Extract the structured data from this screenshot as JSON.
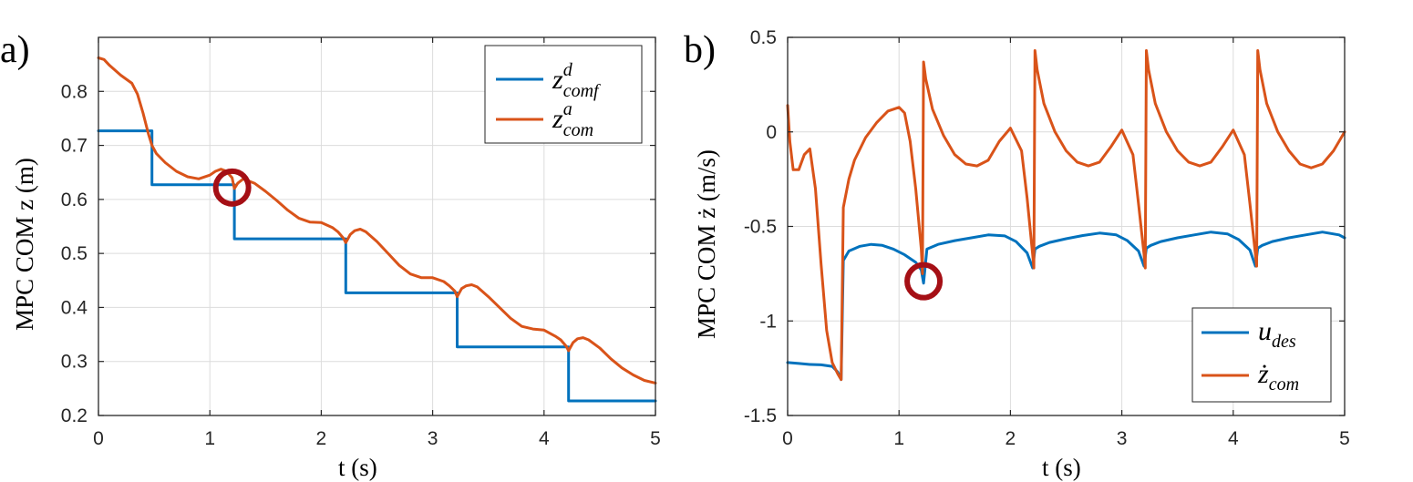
{
  "chart_data": [
    {
      "type": "line",
      "panel_label": "a)",
      "xlabel": "t (s)",
      "ylabel": "MPC COM z (m)",
      "xlim": [
        0,
        5
      ],
      "ylim": [
        0.2,
        0.9
      ],
      "xticks": [
        0,
        1,
        2,
        3,
        4,
        5
      ],
      "yticks": [
        0.2,
        0.3,
        0.4,
        0.5,
        0.6,
        0.7,
        0.8
      ],
      "xtick_labels": [
        "0",
        "1",
        "2",
        "3",
        "4",
        "5"
      ],
      "ytick_labels": [
        "0.2",
        "0.3",
        "0.4",
        "0.5",
        "0.6",
        "0.7",
        "0.8"
      ],
      "grid": true,
      "legend_position": "top-right",
      "series": [
        {
          "name": "z^d_comf",
          "legend": {
            "main": "z",
            "sup": "d",
            "sub": "comf"
          },
          "color": "#0072BD",
          "x": [
            0,
            0.48,
            0.48,
            1.22,
            1.22,
            2.22,
            2.22,
            3.22,
            3.22,
            4.22,
            4.22,
            5.0
          ],
          "y": [
            0.727,
            0.727,
            0.627,
            0.627,
            0.527,
            0.527,
            0.427,
            0.427,
            0.327,
            0.327,
            0.227,
            0.227
          ]
        },
        {
          "name": "z^a_com",
          "legend": {
            "main": "z",
            "sup": "a",
            "sub": "com"
          },
          "color": "#D95319",
          "x": [
            0,
            0.05,
            0.1,
            0.2,
            0.3,
            0.35,
            0.4,
            0.45,
            0.48,
            0.52,
            0.6,
            0.7,
            0.8,
            0.9,
            1.0,
            1.05,
            1.1,
            1.15,
            1.2,
            1.22,
            1.25,
            1.3,
            1.4,
            1.5,
            1.6,
            1.7,
            1.8,
            1.9,
            2.0,
            2.1,
            2.15,
            2.2,
            2.22,
            2.26,
            2.3,
            2.35,
            2.4,
            2.5,
            2.6,
            2.7,
            2.8,
            2.9,
            3.0,
            3.1,
            3.15,
            3.2,
            3.22,
            3.26,
            3.3,
            3.35,
            3.4,
            3.5,
            3.6,
            3.7,
            3.8,
            3.9,
            4.0,
            4.1,
            4.15,
            4.2,
            4.22,
            4.26,
            4.3,
            4.35,
            4.4,
            4.5,
            4.6,
            4.7,
            4.8,
            4.9,
            5.0
          ],
          "y": [
            0.862,
            0.859,
            0.848,
            0.83,
            0.815,
            0.795,
            0.76,
            0.72,
            0.7,
            0.685,
            0.668,
            0.652,
            0.642,
            0.638,
            0.645,
            0.652,
            0.656,
            0.652,
            0.64,
            0.62,
            0.63,
            0.638,
            0.63,
            0.615,
            0.598,
            0.58,
            0.565,
            0.558,
            0.557,
            0.548,
            0.54,
            0.528,
            0.52,
            0.535,
            0.542,
            0.545,
            0.54,
            0.522,
            0.5,
            0.478,
            0.462,
            0.455,
            0.455,
            0.448,
            0.44,
            0.43,
            0.42,
            0.435,
            0.44,
            0.442,
            0.438,
            0.42,
            0.4,
            0.38,
            0.365,
            0.36,
            0.358,
            0.347,
            0.34,
            0.328,
            0.32,
            0.335,
            0.342,
            0.344,
            0.34,
            0.325,
            0.305,
            0.288,
            0.275,
            0.265,
            0.26
          ]
        }
      ],
      "annotations": [
        {
          "type": "circle",
          "x": 1.2,
          "y": 0.622,
          "color": "#A50F15"
        }
      ]
    },
    {
      "type": "line",
      "panel_label": "b)",
      "xlabel": "t (s)",
      "ylabel": "MPC COM ż (m/s)",
      "xlim": [
        0,
        5
      ],
      "ylim": [
        -1.5,
        0.5
      ],
      "xticks": [
        0,
        1,
        2,
        3,
        4,
        5
      ],
      "yticks": [
        -1.5,
        -1,
        -0.5,
        0,
        0.5
      ],
      "xtick_labels": [
        "0",
        "1",
        "2",
        "3",
        "4",
        "5"
      ],
      "ytick_labels": [
        "-1.5",
        "-1",
        "-0.5",
        "0",
        "0.5"
      ],
      "grid": true,
      "legend_position": "bottom-right",
      "series": [
        {
          "name": "u_des",
          "legend": {
            "main": "u",
            "sup": "",
            "sub": "des"
          },
          "color": "#0072BD",
          "x": [
            0,
            0.1,
            0.2,
            0.3,
            0.4,
            0.45,
            0.48,
            0.5,
            0.55,
            0.65,
            0.75,
            0.85,
            0.95,
            1.05,
            1.15,
            1.2,
            1.22,
            1.25,
            1.35,
            1.5,
            1.65,
            1.8,
            1.95,
            2.05,
            2.15,
            2.2,
            2.22,
            2.26,
            2.35,
            2.5,
            2.65,
            2.8,
            2.95,
            3.05,
            3.15,
            3.2,
            3.22,
            3.26,
            3.35,
            3.5,
            3.65,
            3.8,
            3.95,
            4.05,
            4.15,
            4.2,
            4.22,
            4.26,
            4.35,
            4.5,
            4.65,
            4.8,
            4.95,
            5.0
          ],
          "y": [
            -1.22,
            -1.225,
            -1.23,
            -1.232,
            -1.24,
            -1.27,
            -1.31,
            -0.68,
            -0.63,
            -0.605,
            -0.595,
            -0.6,
            -0.62,
            -0.65,
            -0.69,
            -0.73,
            -0.8,
            -0.62,
            -0.595,
            -0.575,
            -0.56,
            -0.545,
            -0.55,
            -0.58,
            -0.64,
            -0.72,
            -0.62,
            -0.605,
            -0.585,
            -0.565,
            -0.548,
            -0.535,
            -0.545,
            -0.575,
            -0.63,
            -0.71,
            -0.615,
            -0.6,
            -0.58,
            -0.56,
            -0.545,
            -0.53,
            -0.54,
            -0.57,
            -0.625,
            -0.71,
            -0.615,
            -0.6,
            -0.58,
            -0.56,
            -0.545,
            -0.53,
            -0.545,
            -0.56
          ]
        },
        {
          "name": "ż_com",
          "legend": {
            "main": "ż",
            "sup": "",
            "sub": "com"
          },
          "color": "#D95319",
          "x": [
            0,
            0.02,
            0.05,
            0.1,
            0.15,
            0.2,
            0.25,
            0.3,
            0.35,
            0.4,
            0.45,
            0.47,
            0.48,
            0.5,
            0.55,
            0.6,
            0.7,
            0.8,
            0.9,
            1.0,
            1.05,
            1.1,
            1.15,
            1.2,
            1.21,
            1.22,
            1.24,
            1.3,
            1.4,
            1.5,
            1.6,
            1.7,
            1.8,
            1.9,
            2.0,
            2.1,
            2.15,
            2.2,
            2.21,
            2.22,
            2.24,
            2.3,
            2.4,
            2.5,
            2.6,
            2.7,
            2.8,
            2.9,
            3.0,
            3.1,
            3.15,
            3.2,
            3.21,
            3.22,
            3.24,
            3.3,
            3.4,
            3.5,
            3.6,
            3.7,
            3.8,
            3.9,
            4.0,
            4.1,
            4.15,
            4.2,
            4.21,
            4.22,
            4.24,
            4.3,
            4.4,
            4.5,
            4.6,
            4.7,
            4.8,
            4.9,
            5.0
          ],
          "y": [
            0.14,
            -0.05,
            -0.2,
            -0.2,
            -0.12,
            -0.09,
            -0.3,
            -0.7,
            -1.05,
            -1.22,
            -1.28,
            -1.3,
            -1.31,
            -0.4,
            -0.25,
            -0.15,
            -0.03,
            0.05,
            0.11,
            0.13,
            0.1,
            -0.05,
            -0.3,
            -0.62,
            -0.75,
            0.37,
            0.28,
            0.12,
            -0.02,
            -0.12,
            -0.17,
            -0.18,
            -0.15,
            -0.05,
            0.02,
            -0.1,
            -0.35,
            -0.65,
            -0.72,
            0.43,
            0.33,
            0.15,
            0.0,
            -0.1,
            -0.16,
            -0.18,
            -0.16,
            -0.08,
            0.01,
            -0.12,
            -0.38,
            -0.65,
            -0.72,
            0.43,
            0.33,
            0.15,
            0.0,
            -0.1,
            -0.16,
            -0.18,
            -0.16,
            -0.08,
            0.01,
            -0.12,
            -0.38,
            -0.65,
            -0.71,
            0.43,
            0.33,
            0.15,
            0.0,
            -0.1,
            -0.17,
            -0.19,
            -0.17,
            -0.1,
            0.0
          ]
        }
      ],
      "annotations": [
        {
          "type": "circle",
          "x": 1.22,
          "y": -0.79,
          "color": "#A50F15"
        }
      ]
    }
  ]
}
